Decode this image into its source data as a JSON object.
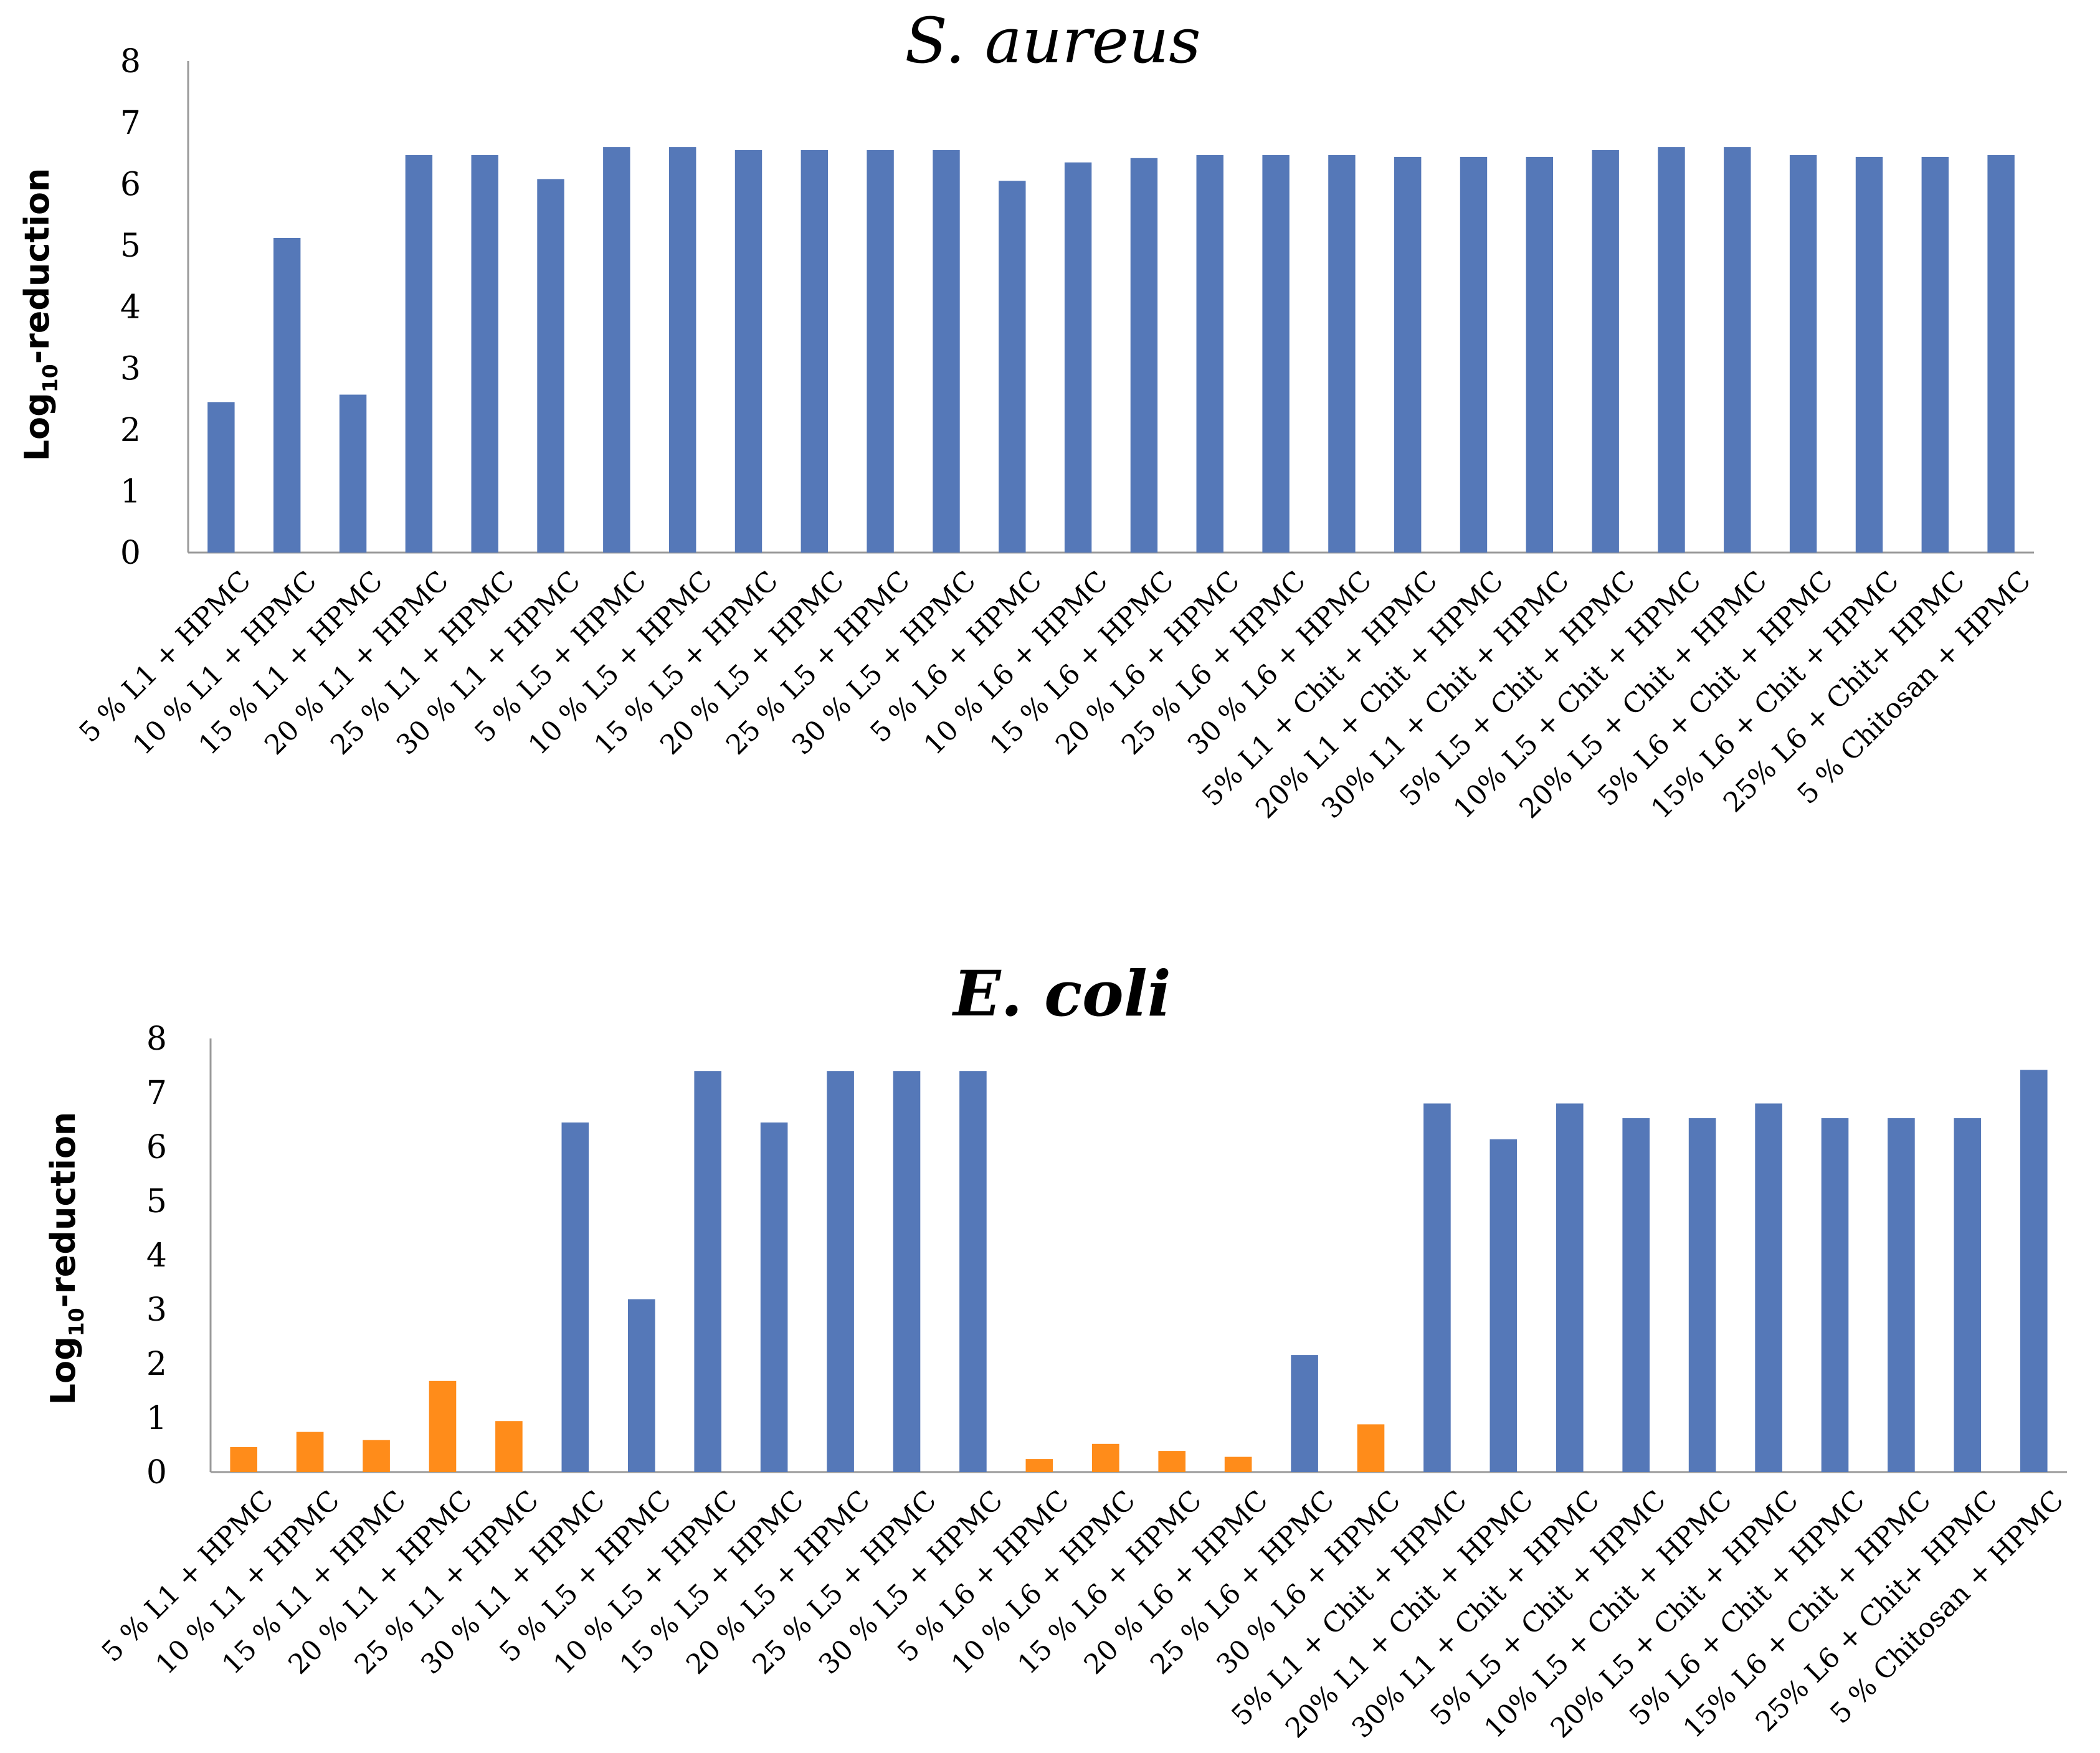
{
  "chart_data": [
    {
      "type": "bar",
      "title": "S. aureus",
      "title_bold": false,
      "ylabel": "Log10-reduction",
      "ylabel_parts": [
        "Log",
        "10",
        "-reduction"
      ],
      "ylim": [
        0,
        8
      ],
      "yticks": [
        0,
        1,
        2,
        3,
        4,
        5,
        6,
        7,
        8
      ],
      "grid": false,
      "legend": "none",
      "categories": [
        "5 % L1 + HPMC",
        "10 % L1 + HPMC",
        "15 % L1 + HPMC",
        "20 % L1 + HPMC",
        "25 % L1 + HPMC",
        "30 % L1 + HPMC",
        "5 % L5 + HPMC",
        "10 % L5 + HPMC",
        "15 % L5 + HPMC",
        "20 % L5 + HPMC",
        "25 % L5 + HPMC",
        "30 % L5 + HPMC",
        "5 % L6 + HPMC",
        "10 % L6 + HPMC",
        "15 % L6 + HPMC",
        "20 % L6 + HPMC",
        "25 % L6 + HPMC",
        "30 % L6 + HPMC",
        "5% L1 + Chit + HPMC",
        "20% L1 + Chit + HPMC",
        "30% L1 + Chit + HPMC",
        "5% L5 + Chit + HPMC",
        "10% L5 + Chit + HPMC",
        "20% L5 + Chit + HPMC",
        "5% L6 + Chit + HPMC",
        "15% L6 + Chit + HPMC",
        "25% L6 + Chit+ HPMC",
        "5 % Chitosan + HPMC"
      ],
      "values": [
        2.45,
        5.12,
        2.57,
        6.47,
        6.47,
        6.08,
        6.6,
        6.6,
        6.55,
        6.55,
        6.55,
        6.55,
        6.05,
        6.35,
        6.42,
        6.47,
        6.47,
        6.47,
        6.44,
        6.44,
        6.44,
        6.55,
        6.6,
        6.6,
        6.47,
        6.44,
        6.44,
        6.47
      ],
      "colors": [
        "#5578b8",
        "#5578b8",
        "#5578b8",
        "#5578b8",
        "#5578b8",
        "#5578b8",
        "#5578b8",
        "#5578b8",
        "#5578b8",
        "#5578b8",
        "#5578b8",
        "#5578b8",
        "#5578b8",
        "#5578b8",
        "#5578b8",
        "#5578b8",
        "#5578b8",
        "#5578b8",
        "#5578b8",
        "#5578b8",
        "#5578b8",
        "#5578b8",
        "#5578b8",
        "#5578b8",
        "#5578b8",
        "#5578b8",
        "#5578b8",
        "#5578b8"
      ]
    },
    {
      "type": "bar",
      "title": "E. coli",
      "title_bold": true,
      "ylabel": "Log10-reduction",
      "ylabel_parts": [
        "Log",
        "10",
        "-reduction"
      ],
      "ylim": [
        0,
        8
      ],
      "yticks": [
        0,
        1,
        2,
        3,
        4,
        5,
        6,
        7,
        8
      ],
      "grid": false,
      "legend": "none",
      "categories": [
        "5 % L1 + HPMC",
        "10 % L1 + HPMC",
        "15 % L1 + HPMC",
        "20 % L1 + HPMC",
        "25 % L1 + HPMC",
        "30 % L1 + HPMC",
        "5 % L5 + HPMC",
        "10 % L5 + HPMC",
        "15 % L5 + HPMC",
        "20 % L5 + HPMC",
        "25 % L5 + HPMC",
        "30 % L5 + HPMC",
        "5 % L6 + HPMC",
        "10 % L6 + HPMC",
        "15 % L6 + HPMC",
        "20 % L6 + HPMC",
        "25 % L6 + HPMC",
        "30 % L6 + HPMC",
        "5% L1 + Chit + HPMC",
        "20% L1 + Chit + HPMC",
        "30% L1 + Chit + HPMC",
        "5% L5 + Chit + HPMC",
        "10% L5 + Chit + HPMC",
        "20% L5 + Chit + HPMC",
        "5% L6 + Chit + HPMC",
        "15% L6 + Chit + HPMC",
        "25% L6 + Chit+ HPMC",
        "5 % Chitosan + HPMC"
      ],
      "values": [
        0.46,
        0.74,
        0.59,
        1.68,
        0.94,
        6.45,
        3.19,
        7.4,
        6.45,
        7.4,
        7.4,
        7.4,
        0.24,
        0.52,
        0.39,
        0.28,
        2.16,
        0.88,
        6.8,
        6.14,
        6.8,
        6.53,
        6.53,
        6.8,
        6.53,
        6.53,
        6.53,
        7.42
      ],
      "colors": [
        "#ff8c1a",
        "#ff8c1a",
        "#ff8c1a",
        "#ff8c1a",
        "#ff8c1a",
        "#5578b8",
        "#5578b8",
        "#5578b8",
        "#5578b8",
        "#5578b8",
        "#5578b8",
        "#5578b8",
        "#ff8c1a",
        "#ff8c1a",
        "#ff8c1a",
        "#ff8c1a",
        "#5578b8",
        "#ff8c1a",
        "#5578b8",
        "#5578b8",
        "#5578b8",
        "#5578b8",
        "#5578b8",
        "#5578b8",
        "#5578b8",
        "#5578b8",
        "#5578b8",
        "#5578b8"
      ]
    }
  ]
}
